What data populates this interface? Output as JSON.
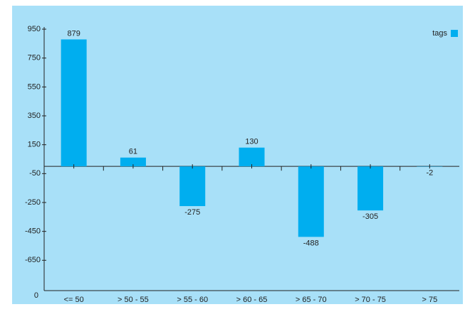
{
  "chart_data": {
    "type": "bar",
    "categories": [
      "<= 50",
      "> 50 - 55",
      "> 55 - 60",
      "> 60 - 65",
      "> 65 - 70",
      "> 70 - 75",
      "> 75"
    ],
    "series": [
      {
        "name": "tags",
        "color": "#00aeef",
        "values": [
          879,
          61,
          -275,
          130,
          -488,
          -305,
          -2
        ]
      }
    ],
    "ylim": [
      -860,
      965
    ],
    "yticks": [
      950,
      750,
      550,
      350,
      150,
      -50,
      -250,
      -450,
      -650
    ],
    "axis_bottom_label": "0",
    "legend": "top-right"
  }
}
